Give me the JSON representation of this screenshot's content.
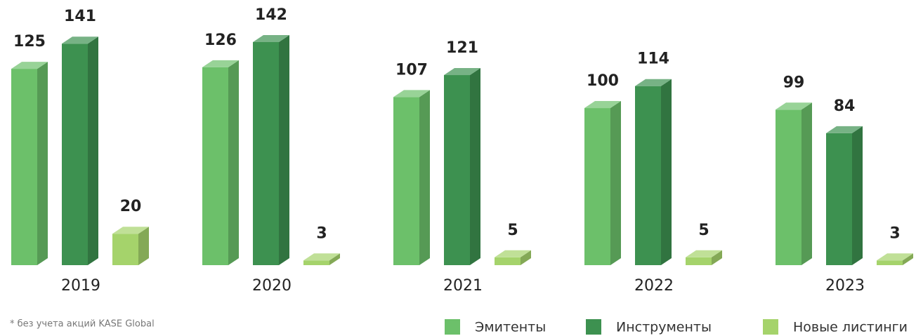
{
  "chart_data": {
    "type": "bar3d",
    "categories": [
      "2019",
      "2020",
      "2021",
      "2022",
      "2023"
    ],
    "series": [
      {
        "name": "Эмитенты",
        "color": "#6cc06a",
        "values": [
          125,
          126,
          107,
          100,
          99
        ]
      },
      {
        "name": "Инструменты",
        "color": "#3d9150",
        "values": [
          141,
          142,
          121,
          114,
          84
        ]
      },
      {
        "name": "Новые листинги",
        "color": "#a5d36b",
        "values": [
          20,
          3,
          5,
          5,
          3
        ]
      }
    ],
    "footnote": "* без учета акций KASE Global"
  }
}
